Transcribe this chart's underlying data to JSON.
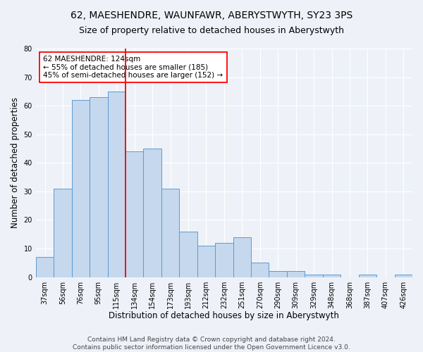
{
  "title1": "62, MAESHENDRE, WAUNFAWR, ABERYSTWYTH, SY23 3PS",
  "title2": "Size of property relative to detached houses in Aberystwyth",
  "xlabel": "Distribution of detached houses by size in Aberystwyth",
  "ylabel": "Number of detached properties",
  "categories": [
    "37sqm",
    "56sqm",
    "76sqm",
    "95sqm",
    "115sqm",
    "134sqm",
    "154sqm",
    "173sqm",
    "193sqm",
    "212sqm",
    "232sqm",
    "251sqm",
    "270sqm",
    "290sqm",
    "309sqm",
    "329sqm",
    "348sqm",
    "368sqm",
    "387sqm",
    "407sqm",
    "426sqm"
  ],
  "values": [
    7,
    31,
    62,
    63,
    65,
    44,
    45,
    31,
    16,
    11,
    12,
    14,
    5,
    2,
    2,
    1,
    1,
    0,
    1,
    0,
    1
  ],
  "bar_color": "#c5d8ed",
  "bar_edge_color": "#5b9bd5",
  "vline_color": "red",
  "annotation_text": "62 MAESHENDRE: 124sqm\n← 55% of detached houses are smaller (185)\n45% of semi-detached houses are larger (152) →",
  "annotation_box_color": "white",
  "annotation_box_edge": "red",
  "ylim": [
    0,
    80
  ],
  "yticks": [
    0,
    10,
    20,
    30,
    40,
    50,
    60,
    70,
    80
  ],
  "footer1": "Contains HM Land Registry data © Crown copyright and database right 2024.",
  "footer2": "Contains public sector information licensed under the Open Government Licence v3.0.",
  "bg_color": "#eef2f8",
  "grid_color": "#ffffff",
  "title_fontsize": 10,
  "subtitle_fontsize": 9,
  "axis_label_fontsize": 8.5,
  "tick_fontsize": 7,
  "annotation_fontsize": 7.5,
  "footer_fontsize": 6.5
}
